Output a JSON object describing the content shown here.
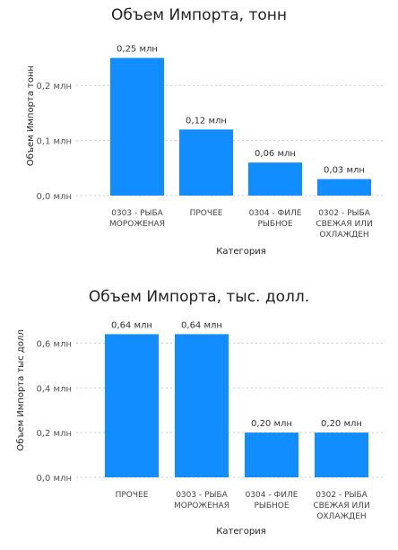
{
  "chart_data": [
    {
      "type": "bar",
      "title": "Объем Импорта, тонн",
      "xlabel": "Категория",
      "ylabel": "Объем Импорта тонн",
      "categories": [
        [
          "0303 - РЫБА",
          "МОРОЖЕНАЯ"
        ],
        [
          "ПРОЧЕЕ"
        ],
        [
          "0304 - ФИЛЕ",
          "РЫБНОЕ"
        ],
        [
          "0302 - РЫБА",
          "СВЕЖАЯ ИЛИ",
          "ОХЛАЖДЕН"
        ]
      ],
      "values": [
        0.25,
        0.12,
        0.06,
        0.03
      ],
      "data_labels": [
        "0,25 млн",
        "0,12 млн",
        "0,06 млн",
        "0,03 млн"
      ],
      "ylim": [
        0,
        0.29
      ],
      "yticks": [
        0,
        0.1,
        0.2
      ],
      "ytick_labels": [
        "0,0 млн",
        "0,1 млн",
        "0,2 млн"
      ],
      "grid": true,
      "bar_color": "#118DFF"
    },
    {
      "type": "bar",
      "title": "Объем Импорта, тыс. долл.",
      "xlabel": "Категория",
      "ylabel": "Объем Импорта тыс долл",
      "categories": [
        [
          "ПРОЧЕЕ"
        ],
        [
          "0303 - РЫБА",
          "МОРОЖЕНАЯ"
        ],
        [
          "0304 - ФИЛЕ",
          "РЫБНОЕ"
        ],
        [
          "0302 - РЫБА",
          "СВЕЖАЯ ИЛИ",
          "ОХЛАЖДЕН"
        ]
      ],
      "values": [
        0.64,
        0.64,
        0.2,
        0.2
      ],
      "data_labels": [
        "0,64 млн",
        "0,64 млн",
        "0,20 млн",
        "0,20 млн"
      ],
      "ylim": [
        0,
        0.73
      ],
      "yticks": [
        0,
        0.2,
        0.4,
        0.6
      ],
      "ytick_labels": [
        "0,0 млн",
        "0,2 млн",
        "0,4 млн",
        "0,6 млн"
      ],
      "grid": true,
      "bar_color": "#118DFF"
    }
  ]
}
